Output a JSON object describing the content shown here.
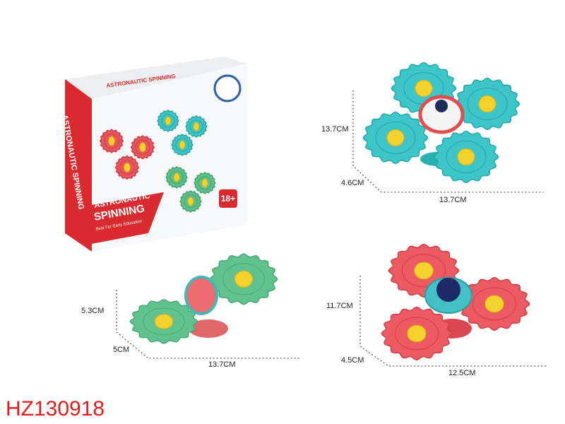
{
  "product_code": "HZ130918",
  "box": {
    "top_title": "ASTRONAUTIC SPINNING",
    "side_title": "ASTRONAUTIC SPINNING",
    "front_title": [
      "ASTRONAUTIC",
      "SPINNING"
    ],
    "tagline": "Best For Early Education",
    "age": "18+"
  },
  "views": [
    {
      "height": "13.7CM",
      "depth": "4.6CM",
      "width": "13.7CM"
    },
    {
      "height": "5.3CM",
      "depth": "5CM",
      "width": "13.7CM"
    },
    {
      "height": "11.7CM",
      "depth": "4.5CM",
      "width": "12.5CM"
    }
  ]
}
